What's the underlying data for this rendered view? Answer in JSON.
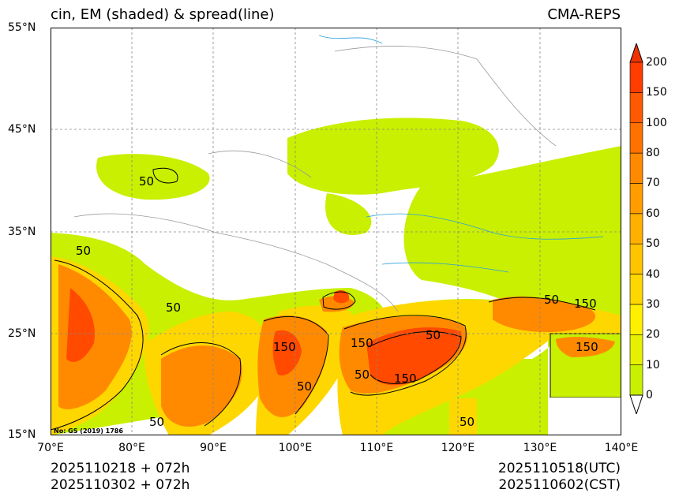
{
  "title_left": "cin, EM (shaded) & spread(line)",
  "title_right": "CMA-REPS",
  "lat_labels": [
    "55°N",
    "45°N",
    "35°N",
    "25°N",
    "15°N"
  ],
  "lon_labels": [
    "70°E",
    "80°E",
    "90°E",
    "100°E",
    "110°E",
    "120°E",
    "130°E",
    "140°E"
  ],
  "colorbar": {
    "labels": [
      "0",
      "10",
      "20",
      "30",
      "40",
      "50",
      "60",
      "70",
      "80",
      "100",
      "150",
      "200"
    ],
    "colors": [
      "#c8f000",
      "#e6f000",
      "#fff000",
      "#ffd700",
      "#ffc400",
      "#ffb000",
      "#ff9d00",
      "#ff8a00",
      "#ff7200",
      "#ff5a00",
      "#ff3d00"
    ],
    "over_color": "#ee3300",
    "under_color": "#ffffff"
  },
  "contour_labels": [
    "50",
    "50",
    "50",
    "150",
    "50",
    "150",
    "50",
    "50",
    "150",
    "150",
    "50",
    "50",
    "50",
    "150"
  ],
  "footer": {
    "init_1": "2025110218  +  072h",
    "init_2": "2025110302  +  072h",
    "valid_utc": "2025110518(UTC)",
    "valid_cst": "2025110602(CST)"
  },
  "note": "No: GS (2019) 1786"
}
